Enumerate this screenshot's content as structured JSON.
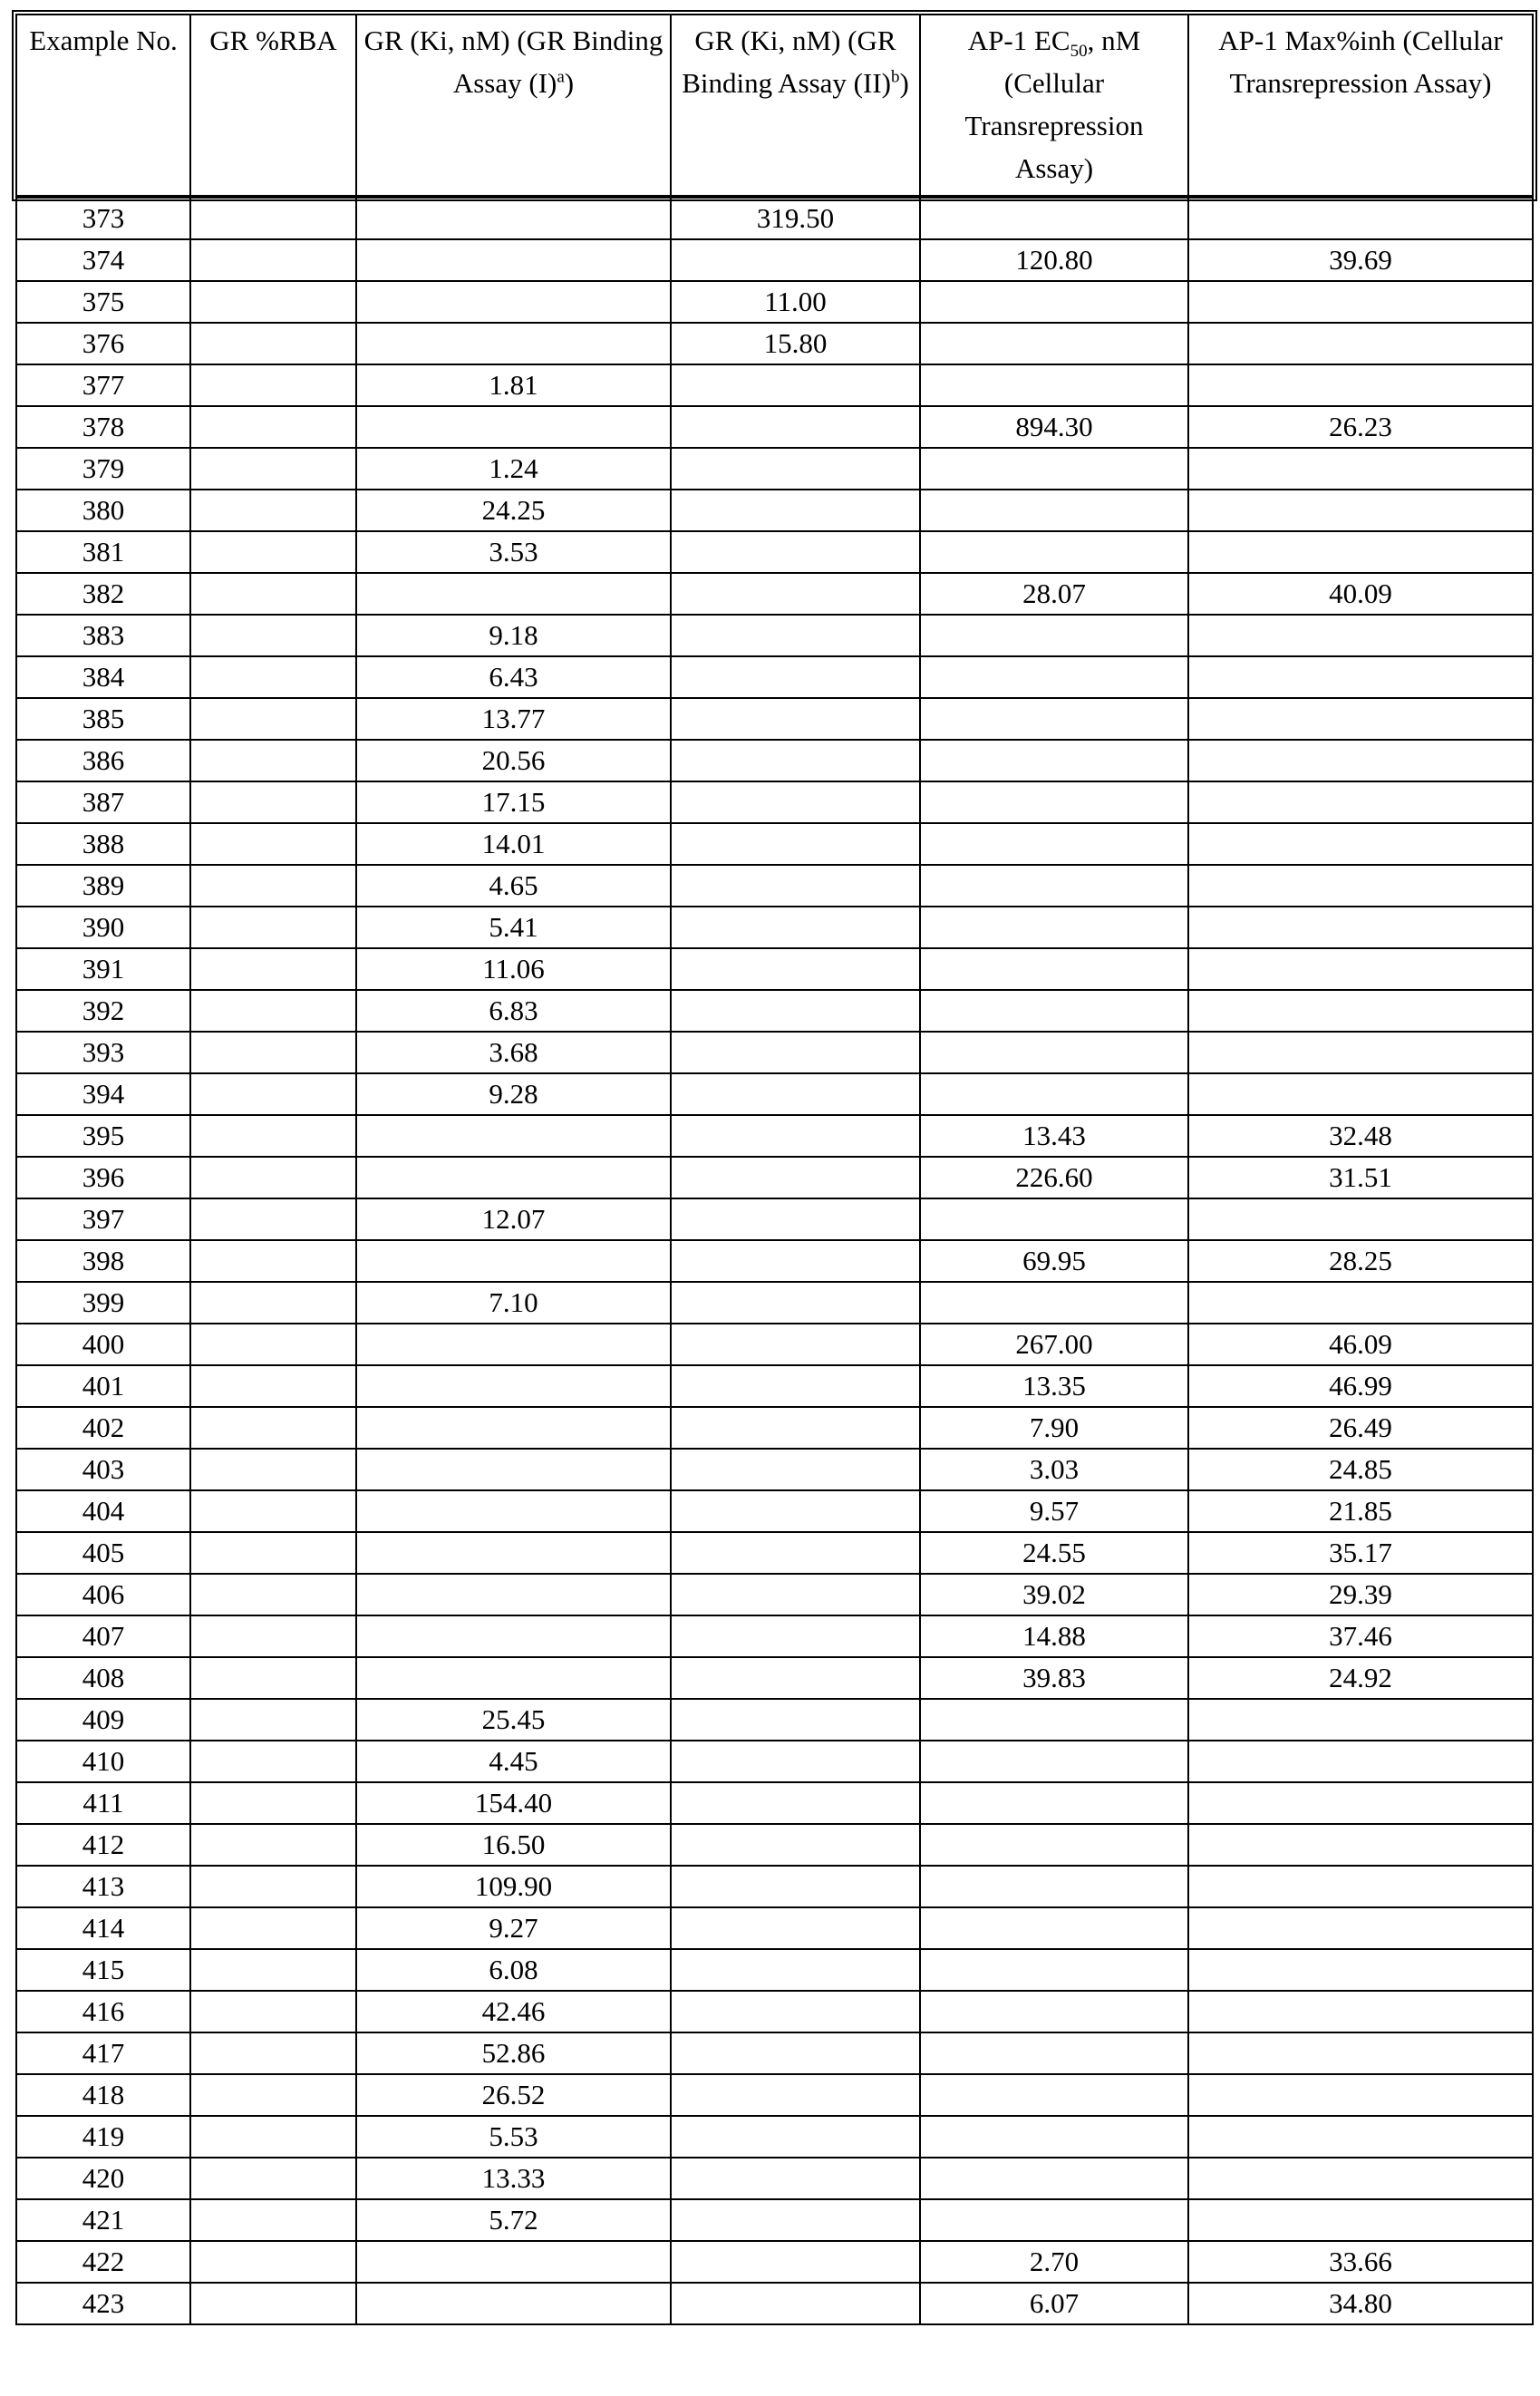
{
  "table": {
    "headers": {
      "example": "Example No.",
      "rba": "GR %RBA",
      "ki1_main": "GR (Ki, nM) (GR Binding Assay (I)",
      "ki1_sup": "a",
      "ki1_end": ")",
      "ki2_main": "GR (Ki, nM) (GR Binding Assay (II)",
      "ki2_sup": "b",
      "ki2_end": ")",
      "ec50_pre": "AP-1 EC",
      "ec50_sub": "50",
      "ec50_post": ", nM (Cellular Transrepression Assay)",
      "maxinh": "AP-1 Max%inh (Cellular Transrepression Assay)"
    },
    "rows": [
      [
        "373",
        "",
        "",
        "319.50",
        "",
        ""
      ],
      [
        "374",
        "",
        "",
        "",
        "120.80",
        "39.69"
      ],
      [
        "375",
        "",
        "",
        "11.00",
        "",
        ""
      ],
      [
        "376",
        "",
        "",
        "15.80",
        "",
        ""
      ],
      [
        "377",
        "",
        "1.81",
        "",
        "",
        ""
      ],
      [
        "378",
        "",
        "",
        "",
        "894.30",
        "26.23"
      ],
      [
        "379",
        "",
        "1.24",
        "",
        "",
        ""
      ],
      [
        "380",
        "",
        "24.25",
        "",
        "",
        ""
      ],
      [
        "381",
        "",
        "3.53",
        "",
        "",
        ""
      ],
      [
        "382",
        "",
        "",
        "",
        "28.07",
        "40.09"
      ],
      [
        "383",
        "",
        "9.18",
        "",
        "",
        ""
      ],
      [
        "384",
        "",
        "6.43",
        "",
        "",
        ""
      ],
      [
        "385",
        "",
        "13.77",
        "",
        "",
        ""
      ],
      [
        "386",
        "",
        "20.56",
        "",
        "",
        ""
      ],
      [
        "387",
        "",
        "17.15",
        "",
        "",
        ""
      ],
      [
        "388",
        "",
        "14.01",
        "",
        "",
        ""
      ],
      [
        "389",
        "",
        "4.65",
        "",
        "",
        ""
      ],
      [
        "390",
        "",
        "5.41",
        "",
        "",
        ""
      ],
      [
        "391",
        "",
        "11.06",
        "",
        "",
        ""
      ],
      [
        "392",
        "",
        "6.83",
        "",
        "",
        ""
      ],
      [
        "393",
        "",
        "3.68",
        "",
        "",
        ""
      ],
      [
        "394",
        "",
        "9.28",
        "",
        "",
        ""
      ],
      [
        "395",
        "",
        "",
        "",
        "13.43",
        "32.48"
      ],
      [
        "396",
        "",
        "",
        "",
        "226.60",
        "31.51"
      ],
      [
        "397",
        "",
        "12.07",
        "",
        "",
        ""
      ],
      [
        "398",
        "",
        "",
        "",
        "69.95",
        "28.25"
      ],
      [
        "399",
        "",
        "7.10",
        "",
        "",
        ""
      ],
      [
        "400",
        "",
        "",
        "",
        "267.00",
        "46.09"
      ],
      [
        "401",
        "",
        "",
        "",
        "13.35",
        "46.99"
      ],
      [
        "402",
        "",
        "",
        "",
        "7.90",
        "26.49"
      ],
      [
        "403",
        "",
        "",
        "",
        "3.03",
        "24.85"
      ],
      [
        "404",
        "",
        "",
        "",
        "9.57",
        "21.85"
      ],
      [
        "405",
        "",
        "",
        "",
        "24.55",
        "35.17"
      ],
      [
        "406",
        "",
        "",
        "",
        "39.02",
        "29.39"
      ],
      [
        "407",
        "",
        "",
        "",
        "14.88",
        "37.46"
      ],
      [
        "408",
        "",
        "",
        "",
        "39.83",
        "24.92"
      ],
      [
        "409",
        "",
        "25.45",
        "",
        "",
        ""
      ],
      [
        "410",
        "",
        "4.45",
        "",
        "",
        ""
      ],
      [
        "411",
        "",
        "154.40",
        "",
        "",
        ""
      ],
      [
        "412",
        "",
        "16.50",
        "",
        "",
        ""
      ],
      [
        "413",
        "",
        "109.90",
        "",
        "",
        ""
      ],
      [
        "414",
        "",
        "9.27",
        "",
        "",
        ""
      ],
      [
        "415",
        "",
        "6.08",
        "",
        "",
        ""
      ],
      [
        "416",
        "",
        "42.46",
        "",
        "",
        ""
      ],
      [
        "417",
        "",
        "52.86",
        "",
        "",
        ""
      ],
      [
        "418",
        "",
        "26.52",
        "",
        "",
        ""
      ],
      [
        "419",
        "",
        "5.53",
        "",
        "",
        ""
      ],
      [
        "420",
        "",
        "13.33",
        "",
        "",
        ""
      ],
      [
        "421",
        "",
        "5.72",
        "",
        "",
        ""
      ],
      [
        "422",
        "",
        "",
        "",
        "2.70",
        "33.66"
      ],
      [
        "423",
        "",
        "",
        "",
        "6.07",
        "34.80"
      ]
    ]
  }
}
